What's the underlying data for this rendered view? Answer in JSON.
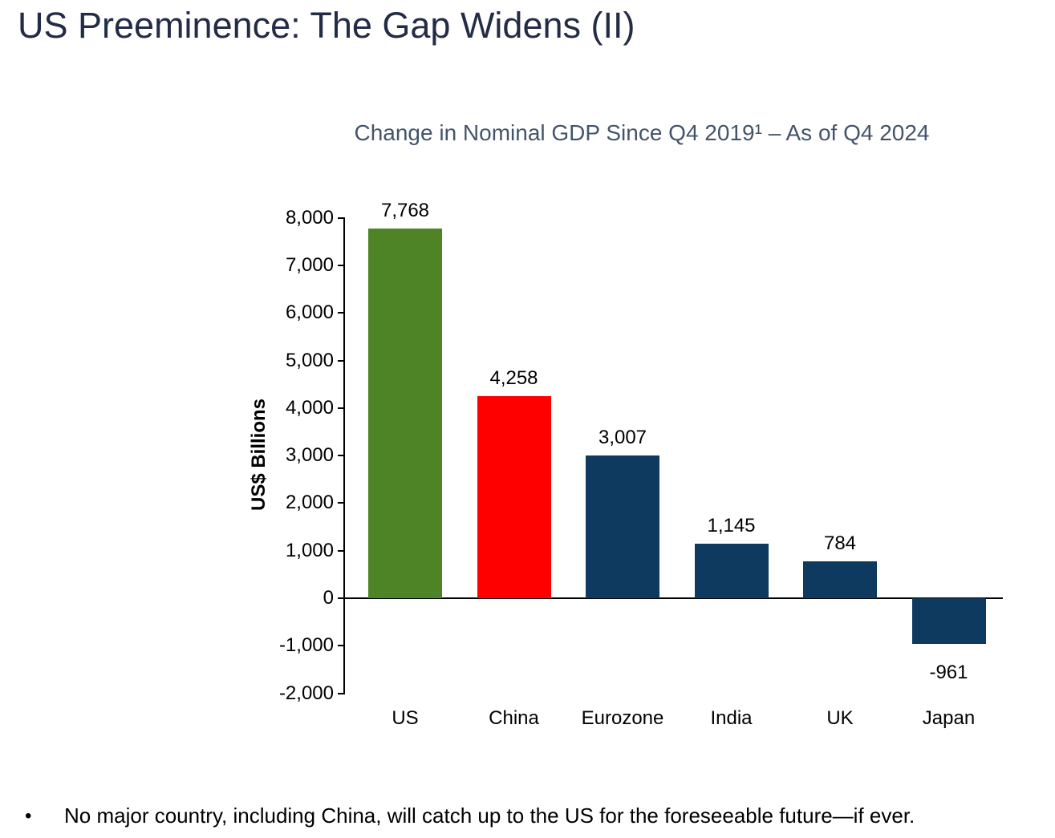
{
  "slide": {
    "title": "US Preeminence: The Gap Widens (II)",
    "footnote_bullet": "•",
    "footnote": "No major country, including China, will catch up to the US for the foreseeable future—if ever."
  },
  "chart_data": {
    "type": "bar",
    "title": "Change in Nominal GDP Since Q4 2019¹ – As of Q4 2024",
    "ylabel": "US$ Billions",
    "xlabel": "",
    "categories": [
      "US",
      "China",
      "Eurozone",
      "India",
      "UK",
      "Japan"
    ],
    "values": [
      7768,
      4258,
      3007,
      1145,
      784,
      -961
    ],
    "data_labels": [
      "7,768",
      "4,258",
      "3,007",
      "1,145",
      "784",
      "-961"
    ],
    "bar_colors": [
      "#4e8326",
      "#ff0000",
      "#0d3a5e",
      "#0d3a5e",
      "#0d3a5e",
      "#0d3a5e"
    ],
    "ylim": [
      -2000,
      8000
    ],
    "ytick_interval": 1000,
    "yticks": [
      8000,
      7000,
      6000,
      5000,
      4000,
      3000,
      2000,
      1000,
      0,
      -1000,
      -2000
    ],
    "ytick_labels": [
      "8,000",
      "7,000",
      "6,000",
      "5,000",
      "4,000",
      "3,000",
      "2,000",
      "1,000",
      "0",
      "-1,000",
      "-2,000"
    ],
    "grid": false,
    "legend": false
  },
  "colors": {
    "slide_title": "#232c47",
    "chart_title": "#44546a",
    "axis": "#000000",
    "text": "#000000",
    "background": "#ffffff"
  }
}
